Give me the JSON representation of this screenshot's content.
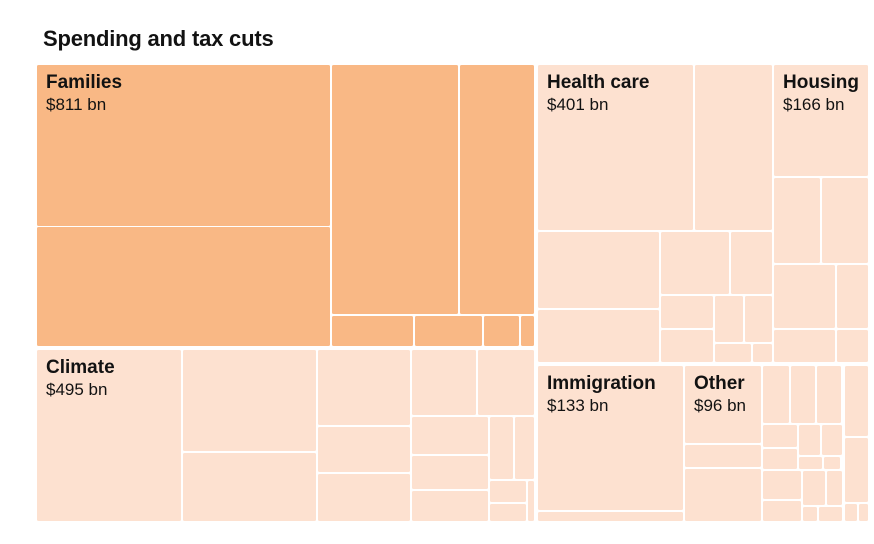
{
  "chart_data": {
    "type": "treemap",
    "title": "Spending and tax cuts",
    "value_format": "$VALUE bn",
    "colors": {
      "highlight": "#f9b885",
      "base": "#fde1d0",
      "label": "#121212",
      "gap": "#ffffff"
    },
    "categories": [
      {
        "id": "families",
        "name": "Families",
        "value": 811,
        "highlight": true
      },
      {
        "id": "climate",
        "name": "Climate",
        "value": 495,
        "highlight": false
      },
      {
        "id": "health-care",
        "name": "Health care",
        "value": 401,
        "highlight": false
      },
      {
        "id": "housing",
        "name": "Housing",
        "value": 166,
        "highlight": false
      },
      {
        "id": "immigration",
        "name": "Immigration",
        "value": 133,
        "highlight": false
      },
      {
        "id": "other",
        "name": "Other",
        "value": 96,
        "highlight": false
      }
    ]
  }
}
